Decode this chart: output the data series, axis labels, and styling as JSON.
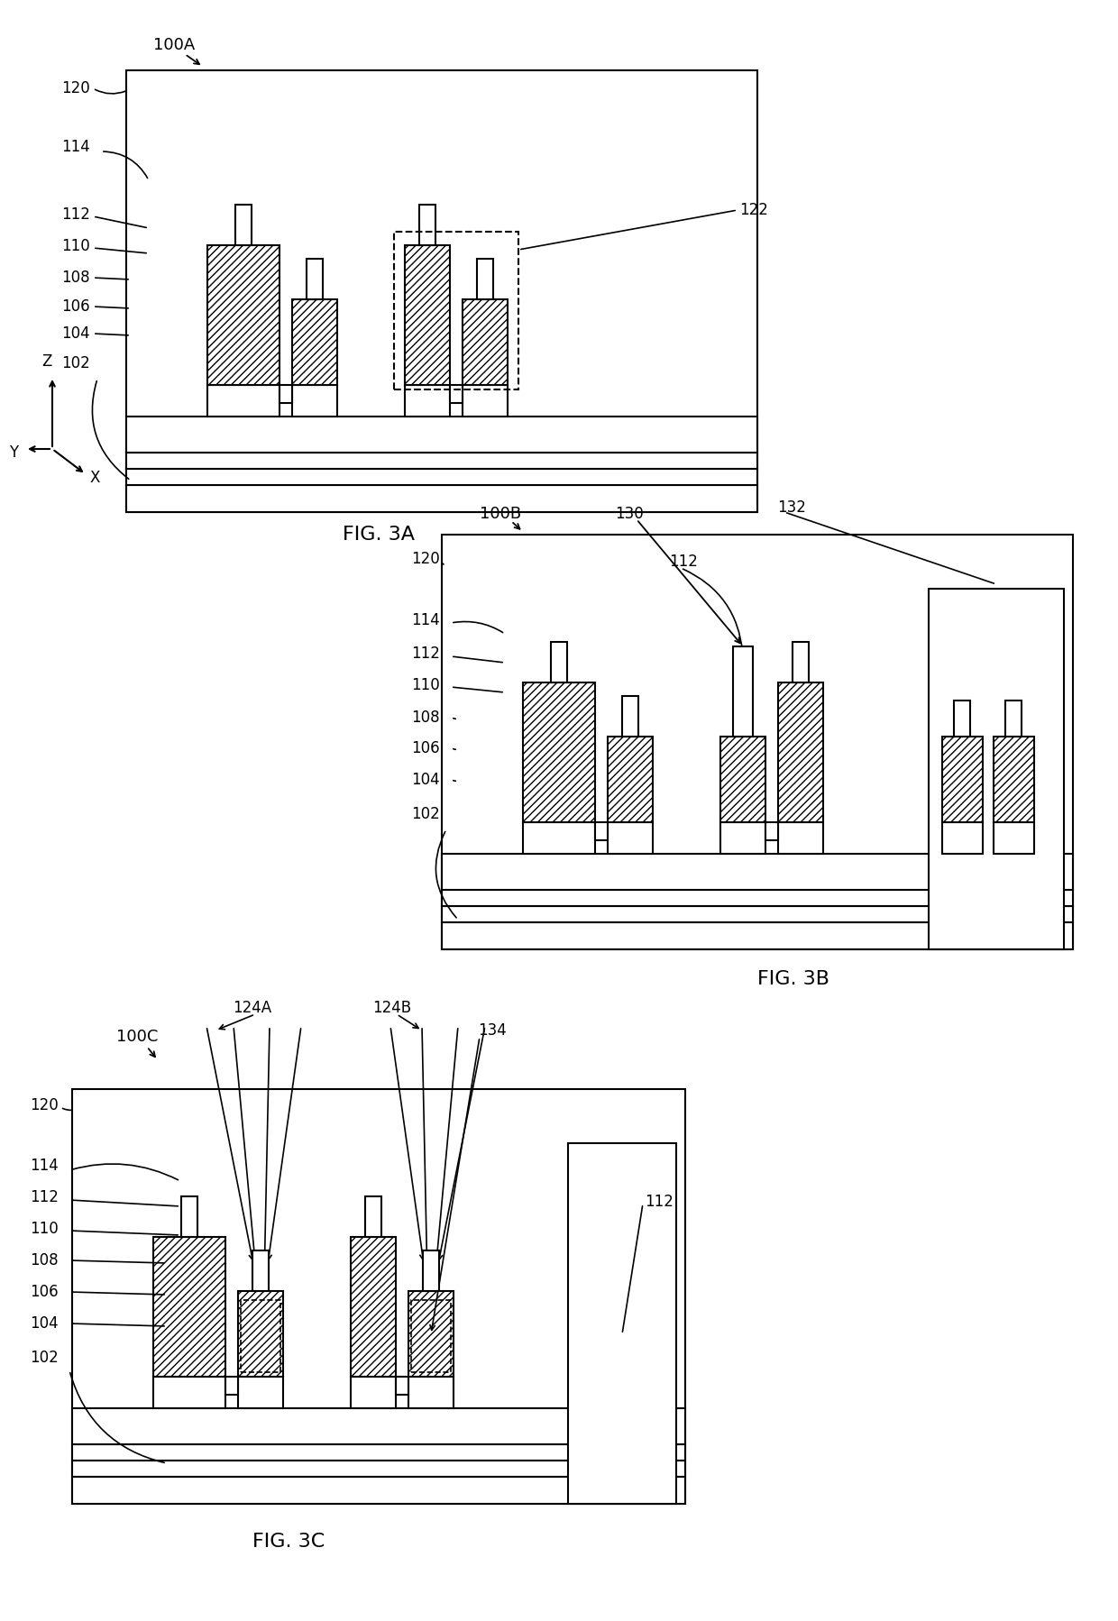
{
  "bg_color": "#ffffff",
  "line_color": "#000000",
  "hatch_pattern": "////",
  "fig3a": {
    "label": "100A",
    "fig_label": "FIG. 3A"
  },
  "fig3b": {
    "label": "100B",
    "fig_label": "FIG. 3B"
  },
  "fig3c": {
    "label": "100C",
    "fig_label": "FIG. 3C"
  }
}
